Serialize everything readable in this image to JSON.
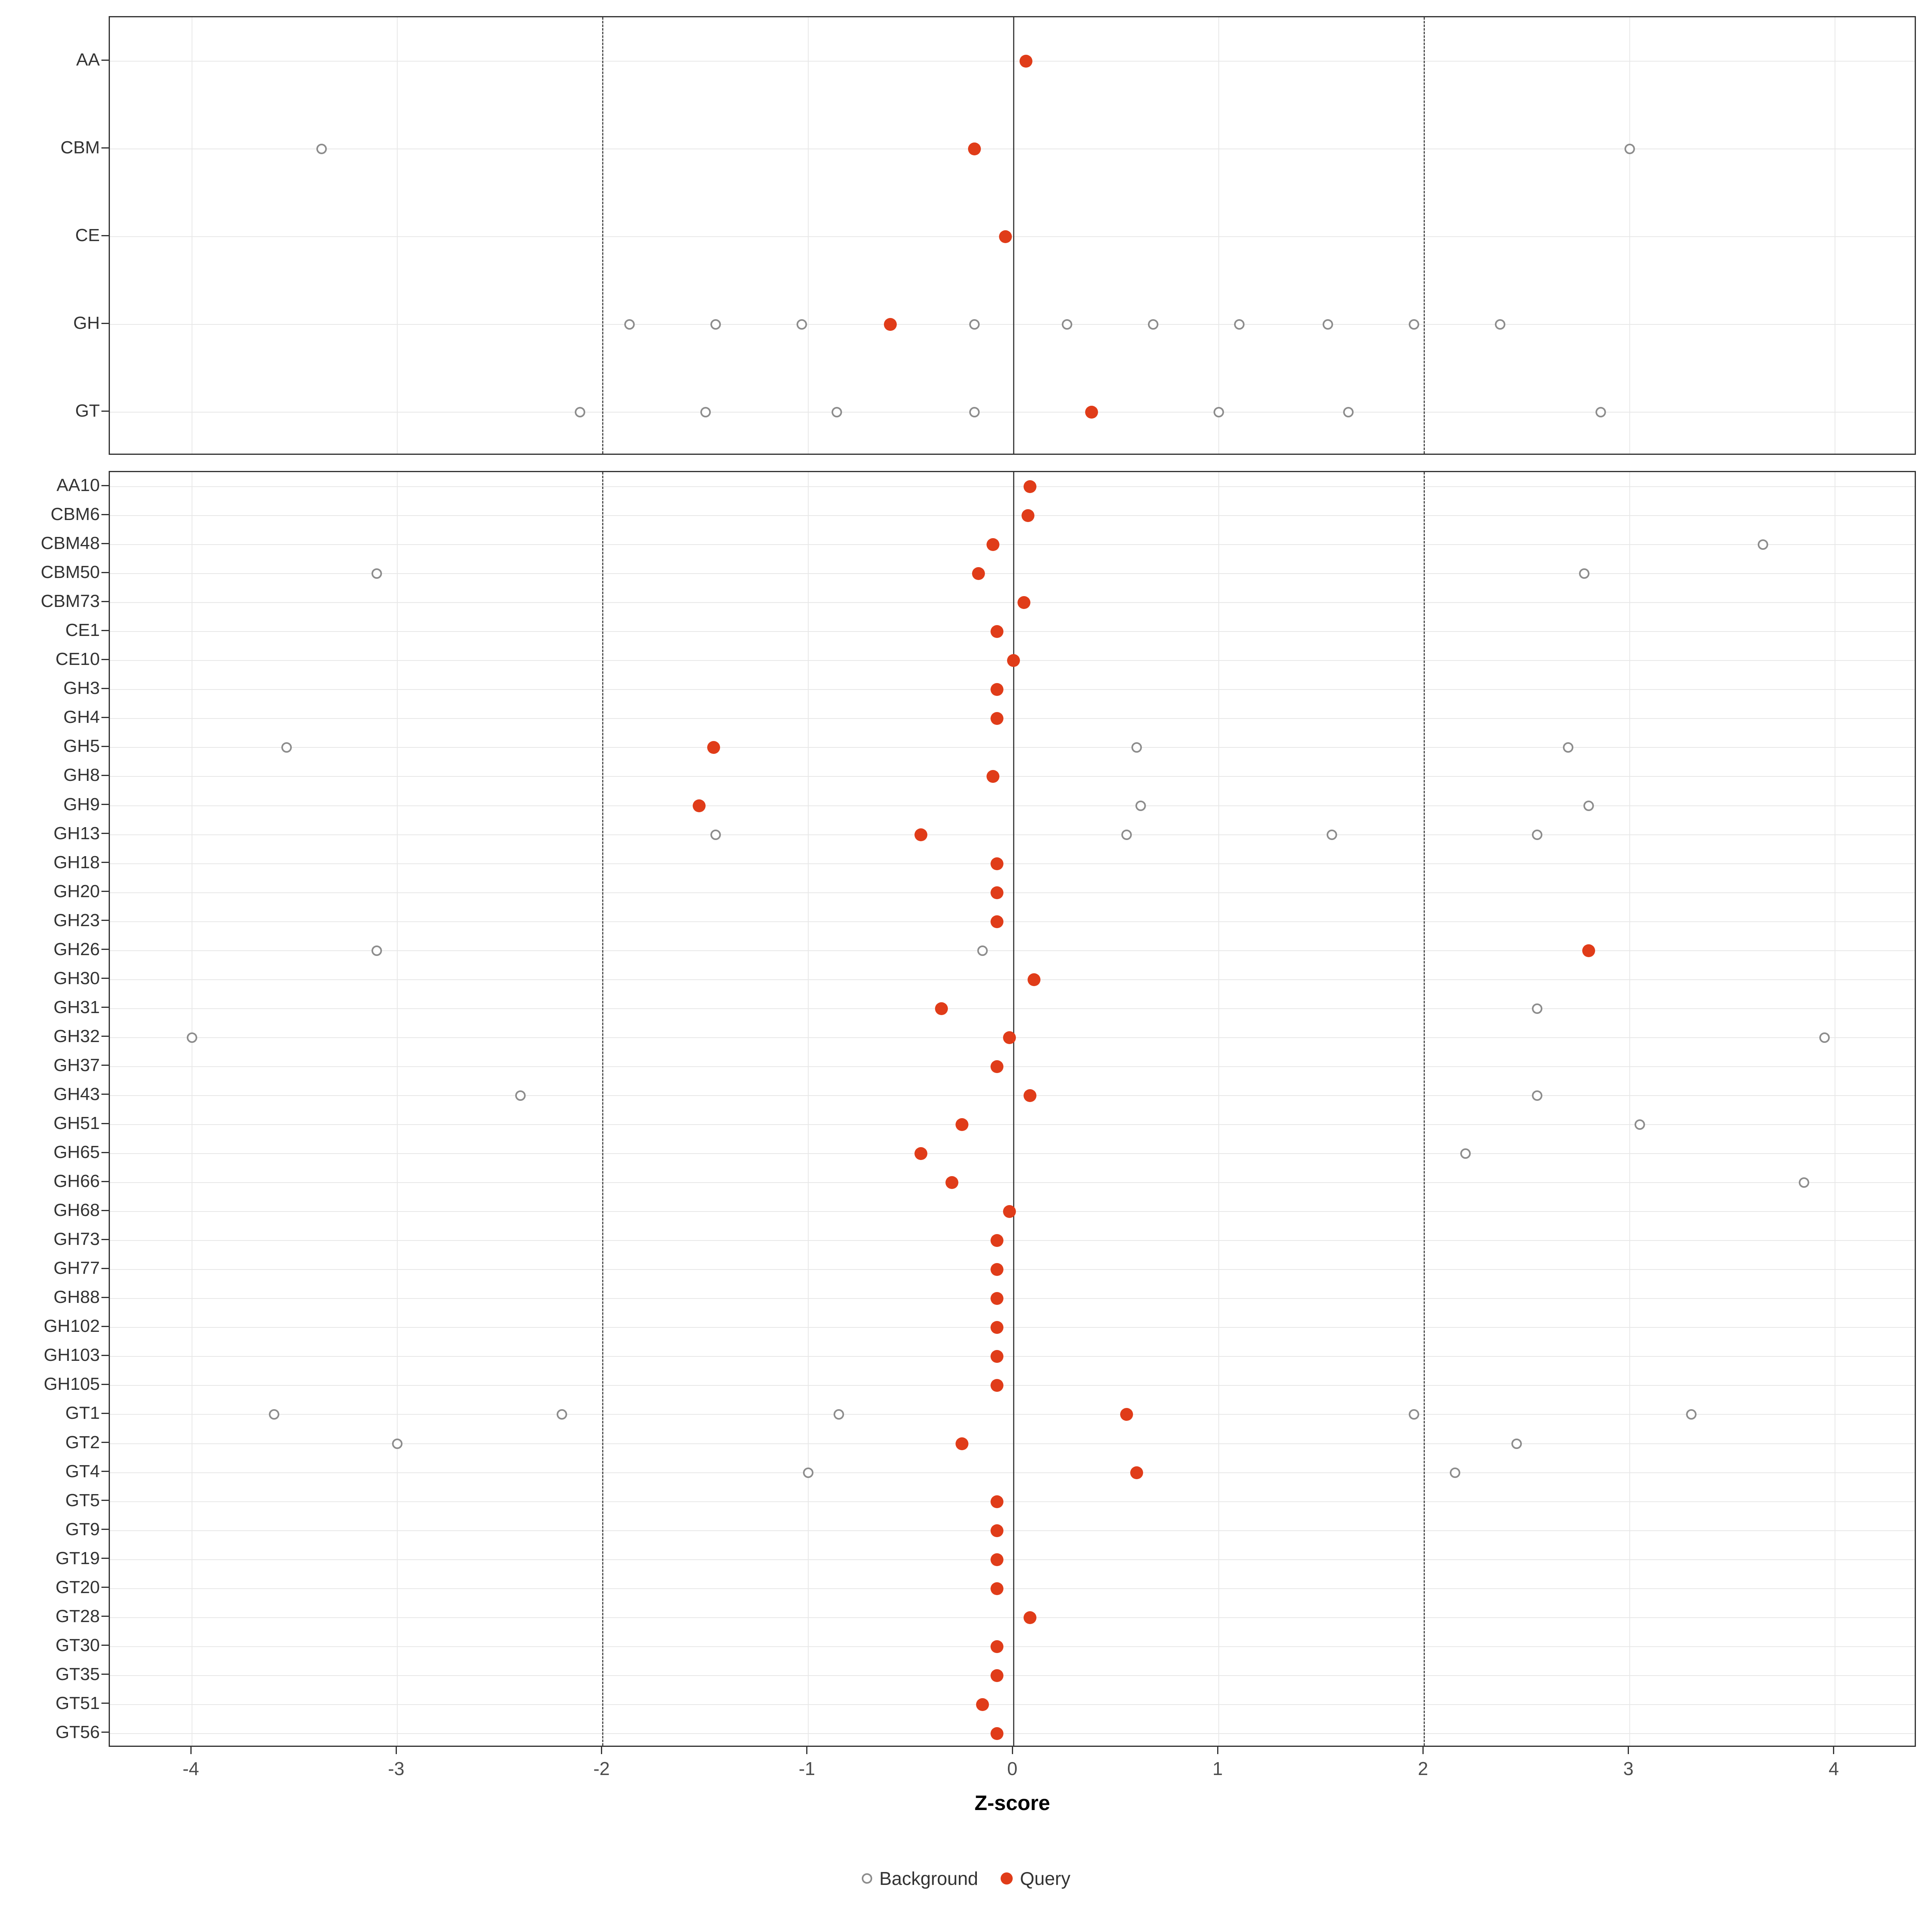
{
  "chart_data": {
    "type": "scatter",
    "title": "",
    "xlabel": "Z-score",
    "ylabel": "",
    "xlim": [
      -4.4,
      4.4
    ],
    "x_ticks": [
      -4,
      -3,
      -2,
      -1,
      0,
      1,
      2,
      3,
      4
    ],
    "grid": "major",
    "reference_lines": {
      "solid": [
        0
      ],
      "dashed": [
        -2,
        2
      ]
    },
    "legend": {
      "position": "bottom",
      "items": [
        {
          "label": "Background",
          "style": "open-circle"
        },
        {
          "label": "Query",
          "style": "filled-circle"
        }
      ]
    },
    "colors": {
      "query": "#E03C19",
      "background_stroke": "#8C8C8C",
      "grid": "#E8E8E8",
      "refline_dashed": "#4D4D4D",
      "refline_solid": "#404040",
      "panel_border": "#333333"
    },
    "panels": [
      {
        "name": "class-summary",
        "rows": [
          {
            "label": "AA",
            "query": [
              0.06
            ],
            "background": []
          },
          {
            "label": "CBM",
            "query": [
              -0.19
            ],
            "background": [
              -3.37,
              3.0
            ]
          },
          {
            "label": "CE",
            "query": [
              -0.04
            ],
            "background": []
          },
          {
            "label": "GH",
            "query": [
              -0.6
            ],
            "background": [
              -1.87,
              -1.45,
              -1.03,
              -0.19,
              0.26,
              0.68,
              1.1,
              1.53,
              1.95,
              2.37
            ]
          },
          {
            "label": "GT",
            "query": [
              0.38
            ],
            "background": [
              -2.11,
              -1.5,
              -0.86,
              -0.19,
              1.0,
              1.63,
              2.86
            ]
          }
        ]
      },
      {
        "name": "family-detail",
        "rows": [
          {
            "label": "AA10",
            "query": [
              0.08
            ],
            "background": []
          },
          {
            "label": "CBM6",
            "query": [
              0.07
            ],
            "background": []
          },
          {
            "label": "CBM48",
            "query": [
              -0.1
            ],
            "background": [
              3.65
            ]
          },
          {
            "label": "CBM50",
            "query": [
              -0.17
            ],
            "background": [
              -3.1,
              2.78
            ]
          },
          {
            "label": "CBM73",
            "query": [
              0.05
            ],
            "background": []
          },
          {
            "label": "CE1",
            "query": [
              -0.08
            ],
            "background": []
          },
          {
            "label": "CE10",
            "query": [
              0.0
            ],
            "background": []
          },
          {
            "label": "GH3",
            "query": [
              -0.08
            ],
            "background": []
          },
          {
            "label": "GH4",
            "query": [
              -0.08
            ],
            "background": []
          },
          {
            "label": "GH5",
            "query": [
              -1.46
            ],
            "background": [
              -3.54,
              0.6,
              2.7
            ]
          },
          {
            "label": "GH8",
            "query": [
              -0.1
            ],
            "background": []
          },
          {
            "label": "GH9",
            "query": [
              -1.53
            ],
            "background": [
              0.62,
              2.8
            ]
          },
          {
            "label": "GH13",
            "query": [
              -0.45
            ],
            "background": [
              -1.45,
              0.55,
              1.55,
              2.55
            ]
          },
          {
            "label": "GH18",
            "query": [
              -0.08
            ],
            "background": []
          },
          {
            "label": "GH20",
            "query": [
              -0.08
            ],
            "background": []
          },
          {
            "label": "GH23",
            "query": [
              -0.08
            ],
            "background": []
          },
          {
            "label": "GH26",
            "query": [
              2.8
            ],
            "background": [
              -3.1,
              -0.15
            ]
          },
          {
            "label": "GH30",
            "query": [
              0.1
            ],
            "background": []
          },
          {
            "label": "GH31",
            "query": [
              -0.35
            ],
            "background": [
              2.55
            ]
          },
          {
            "label": "GH32",
            "query": [
              -0.02
            ],
            "background": [
              -4.0,
              3.95
            ]
          },
          {
            "label": "GH37",
            "query": [
              -0.08
            ],
            "background": []
          },
          {
            "label": "GH43",
            "query": [
              0.08
            ],
            "background": [
              -2.4,
              2.55
            ]
          },
          {
            "label": "GH51",
            "query": [
              -0.25
            ],
            "background": [
              3.05
            ]
          },
          {
            "label": "GH65",
            "query": [
              -0.45
            ],
            "background": [
              2.2
            ]
          },
          {
            "label": "GH66",
            "query": [
              -0.3
            ],
            "background": [
              3.85
            ]
          },
          {
            "label": "GH68",
            "query": [
              -0.02
            ],
            "background": []
          },
          {
            "label": "GH73",
            "query": [
              -0.08
            ],
            "background": []
          },
          {
            "label": "GH77",
            "query": [
              -0.08
            ],
            "background": []
          },
          {
            "label": "GH88",
            "query": [
              -0.08
            ],
            "background": []
          },
          {
            "label": "GH102",
            "query": [
              -0.08
            ],
            "background": []
          },
          {
            "label": "GH103",
            "query": [
              -0.08
            ],
            "background": []
          },
          {
            "label": "GH105",
            "query": [
              -0.08
            ],
            "background": []
          },
          {
            "label": "GT1",
            "query": [
              0.55
            ],
            "background": [
              -3.6,
              -2.2,
              -0.85,
              1.95,
              3.3
            ]
          },
          {
            "label": "GT2",
            "query": [
              -0.25
            ],
            "background": [
              -3.0,
              2.45
            ]
          },
          {
            "label": "GT4",
            "query": [
              0.6
            ],
            "background": [
              -1.0,
              2.15
            ]
          },
          {
            "label": "GT5",
            "query": [
              -0.08
            ],
            "background": []
          },
          {
            "label": "GT9",
            "query": [
              -0.08
            ],
            "background": []
          },
          {
            "label": "GT19",
            "query": [
              -0.08
            ],
            "background": []
          },
          {
            "label": "GT20",
            "query": [
              -0.08
            ],
            "background": []
          },
          {
            "label": "GT28",
            "query": [
              0.08
            ],
            "background": []
          },
          {
            "label": "GT30",
            "query": [
              -0.08
            ],
            "background": []
          },
          {
            "label": "GT35",
            "query": [
              -0.08
            ],
            "background": []
          },
          {
            "label": "GT51",
            "query": [
              -0.15
            ],
            "background": []
          },
          {
            "label": "GT56",
            "query": [
              -0.08
            ],
            "background": []
          }
        ]
      }
    ]
  }
}
